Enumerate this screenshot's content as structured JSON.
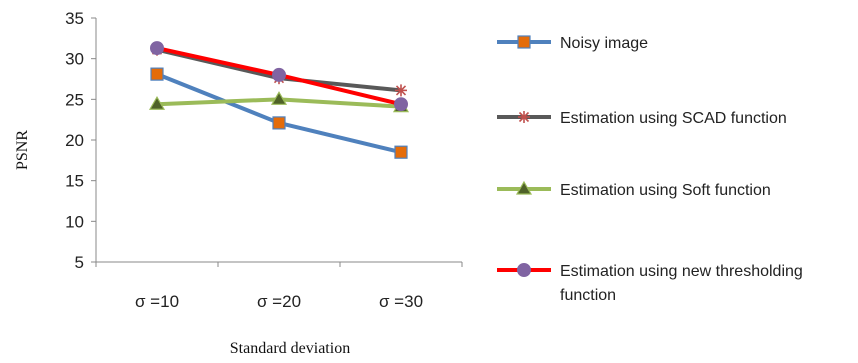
{
  "chart_data": {
    "type": "line",
    "categories": [
      "σ =10",
      "σ =20",
      "σ =30"
    ],
    "xlabel": "Standard deviation",
    "ylabel": "PSNR",
    "ylim": [
      5,
      35
    ],
    "yticks": [
      5,
      10,
      15,
      20,
      25,
      30,
      35
    ],
    "grid": false,
    "legend_position": "right",
    "series": [
      {
        "name": "Noisy image",
        "values": [
          28.1,
          22.1,
          18.5
        ],
        "color": "#4f81bd",
        "marker_color": "#e46c0a",
        "marker": "square"
      },
      {
        "name": "Estimation using SCAD function",
        "values": [
          31.1,
          27.6,
          26.1
        ],
        "color": "#595959",
        "marker_color": "#c0504d",
        "marker": "asterisk"
      },
      {
        "name": "Estimation using Soft function",
        "values": [
          24.4,
          25.0,
          24.1
        ],
        "color": "#9bbb59",
        "marker_color": "#4f6228",
        "marker": "triangle"
      },
      {
        "name": "Estimation using new thresholding function",
        "values": [
          31.3,
          28.0,
          24.4
        ],
        "color": "#ff0000",
        "marker_color": "#8064a2",
        "marker": "circle"
      }
    ]
  }
}
